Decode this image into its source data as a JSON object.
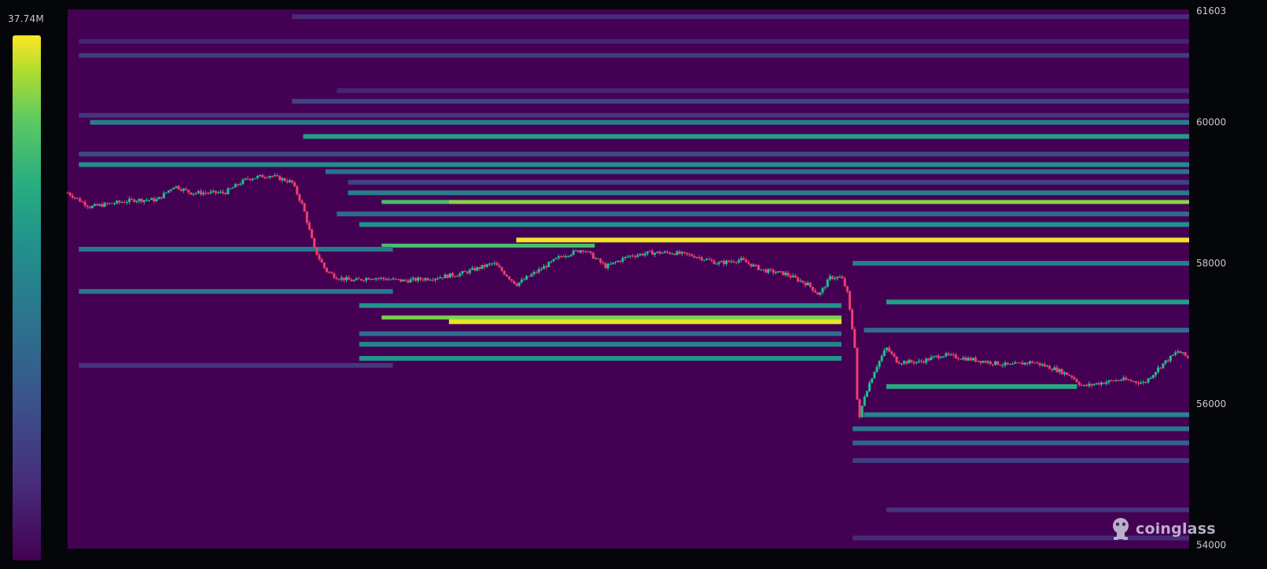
{
  "scale_max_label": "37.74M",
  "colors": {
    "background": "#05060a",
    "heatmap_base": "#440154",
    "candle_up": "#1fbf8f",
    "candle_down": "#ef3f6a",
    "colorscale": [
      "#440154",
      "#472d7b",
      "#3b528b",
      "#2c728e",
      "#21918c",
      "#28ae80",
      "#5ec962",
      "#addc30",
      "#fde725"
    ]
  },
  "brand": {
    "name": "coinglass",
    "icon": "coinglass-logo-icon"
  },
  "chart_data": {
    "type": "heatmap",
    "title": "",
    "xlabel": "",
    "ylabel": "",
    "y_axis_side": "right",
    "ylim": [
      53950,
      61603
    ],
    "y_ticks": [
      "61603",
      "60000",
      "58000",
      "56000",
      "54000"
    ],
    "color_range": [
      0,
      37.74
    ],
    "color_unit": "M",
    "grid": false,
    "legend": "colorbar-left",
    "x_range": [
      0,
      100
    ],
    "liquidity_bands": [
      {
        "price": 61500,
        "from": 20,
        "to": 100,
        "level": 0.12
      },
      {
        "price": 61150,
        "from": 1,
        "to": 100,
        "level": 0.1
      },
      {
        "price": 60950,
        "from": 1,
        "to": 100,
        "level": 0.18
      },
      {
        "price": 60450,
        "from": 24,
        "to": 100,
        "level": 0.1
      },
      {
        "price": 60300,
        "from": 20,
        "to": 100,
        "level": 0.2
      },
      {
        "price": 60100,
        "from": 1,
        "to": 100,
        "level": 0.15
      },
      {
        "price": 60000,
        "from": 2,
        "to": 100,
        "level": 0.42
      },
      {
        "price": 59800,
        "from": 21,
        "to": 100,
        "level": 0.55
      },
      {
        "price": 59550,
        "from": 1,
        "to": 100,
        "level": 0.22
      },
      {
        "price": 59400,
        "from": 1,
        "to": 100,
        "level": 0.48
      },
      {
        "price": 59300,
        "from": 23,
        "to": 100,
        "level": 0.38
      },
      {
        "price": 59150,
        "from": 25,
        "to": 100,
        "level": 0.2
      },
      {
        "price": 59000,
        "from": 25,
        "to": 100,
        "level": 0.42
      },
      {
        "price": 58870,
        "from": 28,
        "to": 100,
        "level": 0.7
      },
      {
        "price": 58870,
        "from": 34,
        "to": 100,
        "level": 0.82
      },
      {
        "price": 58700,
        "from": 24,
        "to": 100,
        "level": 0.35
      },
      {
        "price": 58550,
        "from": 26,
        "to": 100,
        "level": 0.5
      },
      {
        "price": 58330,
        "from": 40,
        "to": 100,
        "level": 0.98
      },
      {
        "price": 58250,
        "from": 28,
        "to": 47,
        "level": 0.7
      },
      {
        "price": 58200,
        "from": 1,
        "to": 29,
        "level": 0.4
      },
      {
        "price": 57600,
        "from": 1,
        "to": 29,
        "level": 0.4
      },
      {
        "price": 57400,
        "from": 26,
        "to": 69,
        "level": 0.5
      },
      {
        "price": 57230,
        "from": 28,
        "to": 69,
        "level": 0.8
      },
      {
        "price": 57170,
        "from": 34,
        "to": 69,
        "level": 0.97
      },
      {
        "price": 57000,
        "from": 26,
        "to": 69,
        "level": 0.35
      },
      {
        "price": 56850,
        "from": 26,
        "to": 69,
        "level": 0.45
      },
      {
        "price": 56650,
        "from": 26,
        "to": 69,
        "level": 0.52
      },
      {
        "price": 56550,
        "from": 1,
        "to": 29,
        "level": 0.15
      },
      {
        "price": 58000,
        "from": 70,
        "to": 100,
        "level": 0.42
      },
      {
        "price": 57450,
        "from": 73,
        "to": 100,
        "level": 0.55
      },
      {
        "price": 57050,
        "from": 71,
        "to": 100,
        "level": 0.35
      },
      {
        "price": 56250,
        "from": 73,
        "to": 90,
        "level": 0.6
      },
      {
        "price": 55850,
        "from": 71,
        "to": 100,
        "level": 0.45
      },
      {
        "price": 55650,
        "from": 70,
        "to": 100,
        "level": 0.4
      },
      {
        "price": 55450,
        "from": 70,
        "to": 100,
        "level": 0.32
      },
      {
        "price": 55200,
        "from": 70,
        "to": 100,
        "level": 0.18
      },
      {
        "price": 54500,
        "from": 73,
        "to": 100,
        "level": 0.15
      },
      {
        "price": 54100,
        "from": 70,
        "to": 100,
        "level": 0.12
      }
    ],
    "price_series": [
      {
        "x": 0,
        "y": 59000
      },
      {
        "x": 2,
        "y": 58800
      },
      {
        "x": 4,
        "y": 58850
      },
      {
        "x": 6,
        "y": 58900
      },
      {
        "x": 8,
        "y": 58900
      },
      {
        "x": 9.5,
        "y": 59100
      },
      {
        "x": 11,
        "y": 59000
      },
      {
        "x": 14,
        "y": 59000
      },
      {
        "x": 16,
        "y": 59200
      },
      {
        "x": 18,
        "y": 59250
      },
      {
        "x": 20,
        "y": 59150
      },
      {
        "x": 21,
        "y": 58800
      },
      {
        "x": 22,
        "y": 58200
      },
      {
        "x": 23,
        "y": 57900
      },
      {
        "x": 24,
        "y": 57800
      },
      {
        "x": 25.5,
        "y": 57750
      },
      {
        "x": 27,
        "y": 57800
      },
      {
        "x": 30,
        "y": 57750
      },
      {
        "x": 33,
        "y": 57800
      },
      {
        "x": 35,
        "y": 57850
      },
      {
        "x": 38,
        "y": 58000
      },
      {
        "x": 40,
        "y": 57700
      },
      {
        "x": 42,
        "y": 57900
      },
      {
        "x": 44,
        "y": 58100
      },
      {
        "x": 46,
        "y": 58200
      },
      {
        "x": 48,
        "y": 57950
      },
      {
        "x": 50,
        "y": 58100
      },
      {
        "x": 52,
        "y": 58150
      },
      {
        "x": 54,
        "y": 58150
      },
      {
        "x": 56,
        "y": 58100
      },
      {
        "x": 58,
        "y": 58000
      },
      {
        "x": 60,
        "y": 58050
      },
      {
        "x": 62,
        "y": 57900
      },
      {
        "x": 64,
        "y": 57850
      },
      {
        "x": 66,
        "y": 57700
      },
      {
        "x": 67,
        "y": 57550
      },
      {
        "x": 68,
        "y": 57800
      },
      {
        "x": 69,
        "y": 57800
      },
      {
        "x": 69.5,
        "y": 57600
      },
      {
        "x": 70.2,
        "y": 56800
      },
      {
        "x": 70.5,
        "y": 55700
      },
      {
        "x": 71,
        "y": 56100
      },
      {
        "x": 72,
        "y": 56500
      },
      {
        "x": 73,
        "y": 56800
      },
      {
        "x": 74,
        "y": 56600
      },
      {
        "x": 76,
        "y": 56600
      },
      {
        "x": 78,
        "y": 56700
      },
      {
        "x": 80,
        "y": 56650
      },
      {
        "x": 82,
        "y": 56600
      },
      {
        "x": 84,
        "y": 56550
      },
      {
        "x": 86,
        "y": 56600
      },
      {
        "x": 88,
        "y": 56500
      },
      {
        "x": 89.5,
        "y": 56400
      },
      {
        "x": 90.5,
        "y": 56250
      },
      {
        "x": 92,
        "y": 56300
      },
      {
        "x": 94,
        "y": 56350
      },
      {
        "x": 96,
        "y": 56300
      },
      {
        "x": 97.5,
        "y": 56550
      },
      {
        "x": 99,
        "y": 56750
      },
      {
        "x": 100,
        "y": 56650
      }
    ]
  }
}
